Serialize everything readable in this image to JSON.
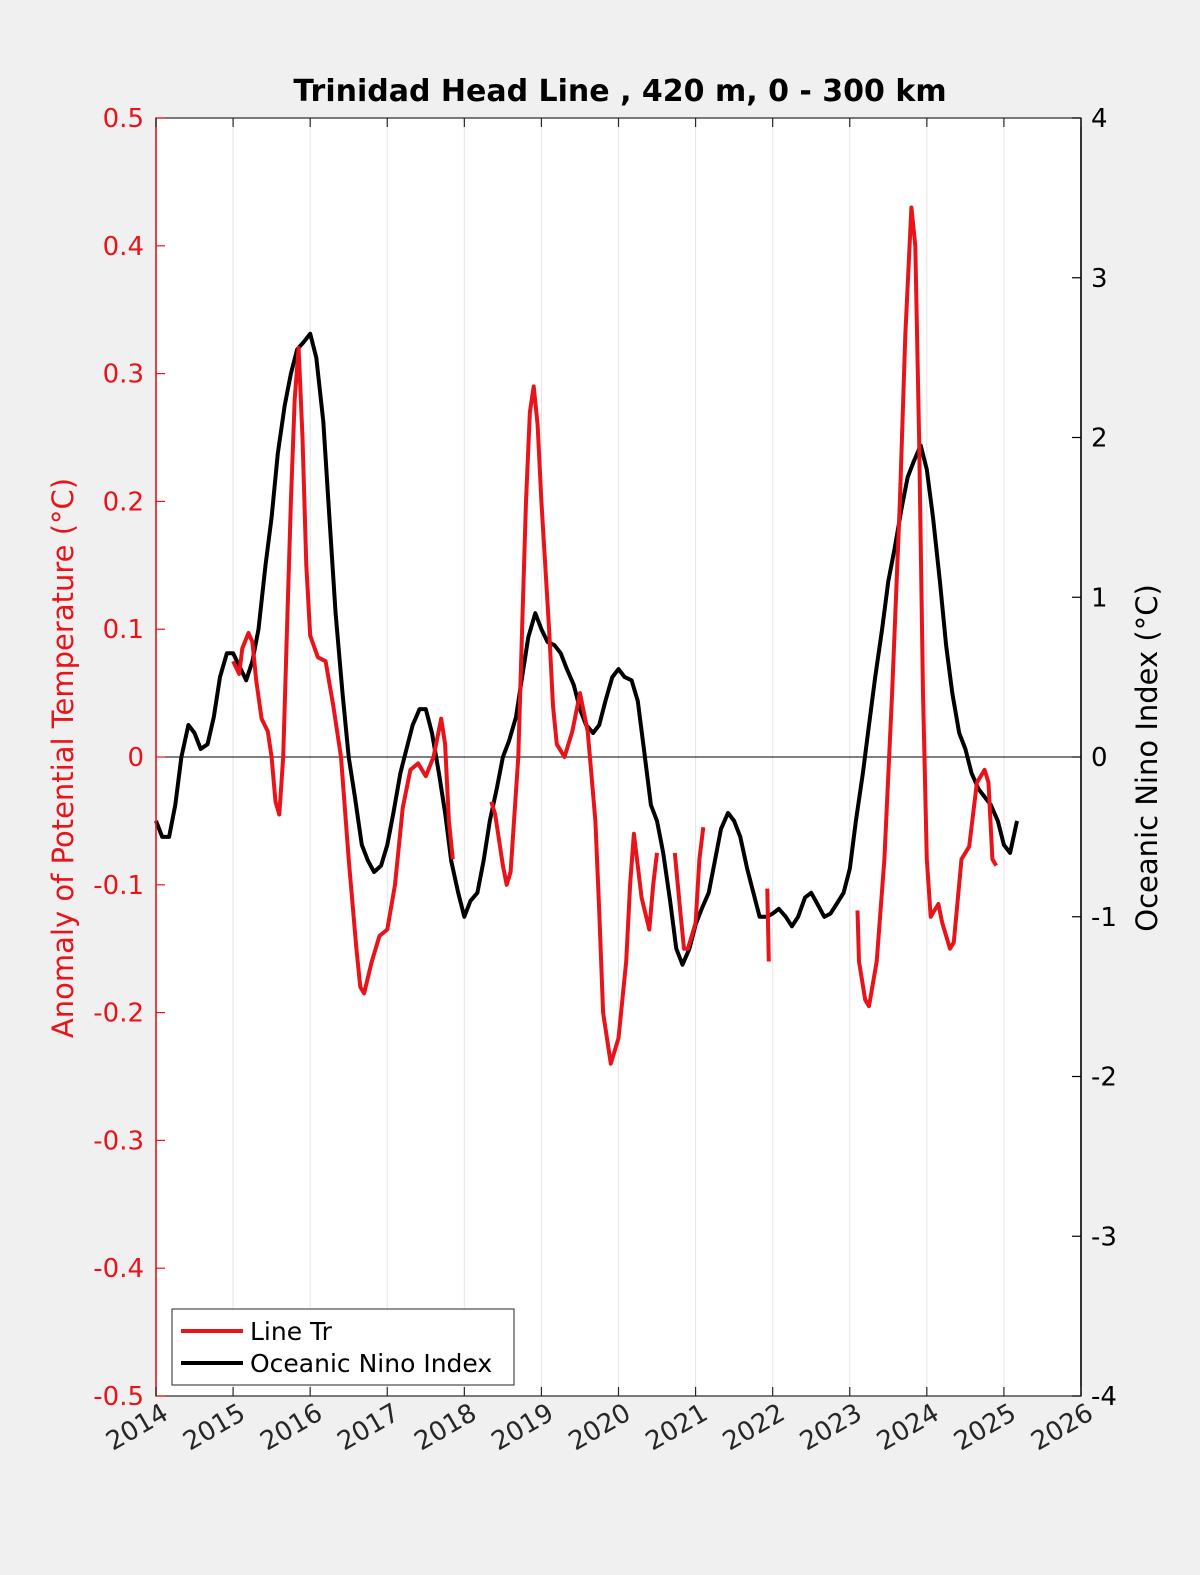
{
  "chart_data": {
    "type": "line",
    "title": "Trinidad Head Line , 420 m, 0 - 300 km",
    "xlabel": "",
    "ylabel_left": "Anomaly of Potential Temperature (°C)",
    "ylabel_right": "Oceanic Nino Index (°C)",
    "xlim": [
      2014,
      2026
    ],
    "ylim_left": [
      -0.5,
      0.5
    ],
    "ylim_right": [
      -4,
      4
    ],
    "x_ticks": [
      "2014",
      "2015",
      "2016",
      "2017",
      "2018",
      "2019",
      "2020",
      "2021",
      "2022",
      "2023",
      "2024",
      "2025",
      "2026"
    ],
    "y_ticks_left": [
      "0.5",
      "0.4",
      "0.3",
      "0.2",
      "0.1",
      "0",
      "-0.1",
      "-0.2",
      "-0.3",
      "-0.4",
      "-0.5"
    ],
    "y_ticks_right": [
      "4",
      "3",
      "2",
      "1",
      "0",
      "-1",
      "-2",
      "-3",
      "-4"
    ],
    "grid": "vertical",
    "legend_position": "bottom-left",
    "colors": {
      "line_tr": "#e8141a",
      "oni": "#000000",
      "left_axis": "#e8141a",
      "right_axis": "#000000"
    },
    "series": [
      {
        "name": "Line Tr",
        "axis": "left",
        "segments": [
          [
            [
              2015.0,
              0.075
            ],
            [
              2015.08,
              0.065
            ],
            [
              2015.12,
              0.085
            ],
            [
              2015.2,
              0.097
            ],
            [
              2015.25,
              0.09
            ],
            [
              2015.3,
              0.06
            ],
            [
              2015.37,
              0.03
            ],
            [
              2015.45,
              0.02
            ],
            [
              2015.5,
              0.0
            ],
            [
              2015.55,
              -0.035
            ],
            [
              2015.6,
              -0.045
            ],
            [
              2015.65,
              0.0
            ],
            [
              2015.7,
              0.1
            ],
            [
              2015.75,
              0.2
            ],
            [
              2015.8,
              0.28
            ],
            [
              2015.85,
              0.32
            ],
            [
              2015.9,
              0.25
            ],
            [
              2015.95,
              0.15
            ],
            [
              2016.0,
              0.095
            ],
            [
              2016.1,
              0.078
            ],
            [
              2016.2,
              0.075
            ],
            [
              2016.3,
              0.04
            ],
            [
              2016.4,
              0.0
            ],
            [
              2016.5,
              -0.08
            ],
            [
              2016.6,
              -0.15
            ],
            [
              2016.65,
              -0.18
            ],
            [
              2016.7,
              -0.185
            ],
            [
              2016.8,
              -0.16
            ],
            [
              2016.9,
              -0.14
            ],
            [
              2017.0,
              -0.135
            ],
            [
              2017.1,
              -0.1
            ],
            [
              2017.2,
              -0.04
            ],
            [
              2017.3,
              -0.01
            ],
            [
              2017.4,
              -0.005
            ],
            [
              2017.5,
              -0.015
            ],
            [
              2017.6,
              0.0
            ],
            [
              2017.7,
              0.03
            ],
            [
              2017.75,
              0.01
            ],
            [
              2017.8,
              -0.05
            ],
            [
              2017.85,
              -0.08
            ]
          ],
          [
            [
              2018.35,
              -0.035
            ],
            [
              2018.4,
              -0.045
            ],
            [
              2018.5,
              -0.085
            ],
            [
              2018.55,
              -0.1
            ],
            [
              2018.6,
              -0.09
            ],
            [
              2018.7,
              0.0
            ],
            [
              2018.75,
              0.1
            ],
            [
              2018.8,
              0.2
            ],
            [
              2018.85,
              0.27
            ],
            [
              2018.9,
              0.29
            ],
            [
              2018.95,
              0.26
            ],
            [
              2019.0,
              0.2
            ],
            [
              2019.1,
              0.1
            ],
            [
              2019.15,
              0.04
            ],
            [
              2019.2,
              0.01
            ],
            [
              2019.3,
              0.0
            ],
            [
              2019.4,
              0.02
            ],
            [
              2019.5,
              0.05
            ],
            [
              2019.6,
              0.02
            ],
            [
              2019.7,
              -0.05
            ],
            [
              2019.75,
              -0.12
            ],
            [
              2019.8,
              -0.2
            ],
            [
              2019.9,
              -0.24
            ],
            [
              2020.0,
              -0.22
            ],
            [
              2020.1,
              -0.16
            ],
            [
              2020.15,
              -0.1
            ],
            [
              2020.2,
              -0.06
            ],
            [
              2020.3,
              -0.11
            ],
            [
              2020.4,
              -0.135
            ],
            [
              2020.45,
              -0.1
            ],
            [
              2020.5,
              -0.075
            ]
          ],
          [
            [
              2020.73,
              -0.075
            ],
            [
              2020.8,
              -0.12
            ],
            [
              2020.85,
              -0.15
            ],
            [
              2020.9,
              -0.15
            ],
            [
              2021.0,
              -0.13
            ],
            [
              2021.05,
              -0.08
            ],
            [
              2021.1,
              -0.055
            ]
          ],
          [
            [
              2021.93,
              -0.103
            ],
            [
              2021.95,
              -0.16
            ]
          ],
          [
            [
              2023.1,
              -0.12
            ],
            [
              2023.12,
              -0.16
            ],
            [
              2023.2,
              -0.19
            ],
            [
              2023.25,
              -0.195
            ],
            [
              2023.35,
              -0.16
            ],
            [
              2023.45,
              -0.08
            ],
            [
              2023.55,
              0.05
            ],
            [
              2023.65,
              0.2
            ],
            [
              2023.72,
              0.33
            ],
            [
              2023.8,
              0.43
            ],
            [
              2023.85,
              0.4
            ],
            [
              2023.9,
              0.25
            ],
            [
              2023.95,
              0.05
            ],
            [
              2024.0,
              -0.08
            ],
            [
              2024.05,
              -0.125
            ],
            [
              2024.1,
              -0.12
            ],
            [
              2024.15,
              -0.115
            ],
            [
              2024.2,
              -0.13
            ],
            [
              2024.3,
              -0.15
            ],
            [
              2024.35,
              -0.145
            ],
            [
              2024.45,
              -0.08
            ],
            [
              2024.55,
              -0.07
            ],
            [
              2024.65,
              -0.02
            ],
            [
              2024.75,
              -0.01
            ],
            [
              2024.8,
              -0.02
            ],
            [
              2024.85,
              -0.08
            ],
            [
              2024.9,
              -0.085
            ]
          ]
        ]
      },
      {
        "name": "Oceanic Nino Index",
        "axis": "right",
        "segments": [
          [
            [
              2014.0,
              -0.4
            ],
            [
              2014.08,
              -0.5
            ],
            [
              2014.17,
              -0.5
            ],
            [
              2014.25,
              -0.3
            ],
            [
              2014.33,
              0.0
            ],
            [
              2014.42,
              0.2
            ],
            [
              2014.5,
              0.15
            ],
            [
              2014.58,
              0.05
            ],
            [
              2014.67,
              0.08
            ],
            [
              2014.75,
              0.25
            ],
            [
              2014.83,
              0.5
            ],
            [
              2014.92,
              0.65
            ],
            [
              2015.0,
              0.65
            ],
            [
              2015.08,
              0.57
            ],
            [
              2015.17,
              0.48
            ],
            [
              2015.25,
              0.6
            ],
            [
              2015.33,
              0.8
            ],
            [
              2015.42,
              1.2
            ],
            [
              2015.5,
              1.5
            ],
            [
              2015.58,
              1.9
            ],
            [
              2015.67,
              2.2
            ],
            [
              2015.75,
              2.4
            ],
            [
              2015.83,
              2.55
            ],
            [
              2015.92,
              2.6
            ],
            [
              2016.0,
              2.65
            ],
            [
              2016.08,
              2.5
            ],
            [
              2016.17,
              2.1
            ],
            [
              2016.25,
              1.5
            ],
            [
              2016.33,
              0.9
            ],
            [
              2016.42,
              0.4
            ],
            [
              2016.5,
              0.0
            ],
            [
              2016.58,
              -0.25
            ],
            [
              2016.67,
              -0.55
            ],
            [
              2016.75,
              -0.65
            ],
            [
              2016.83,
              -0.72
            ],
            [
              2016.92,
              -0.68
            ],
            [
              2017.0,
              -0.55
            ],
            [
              2017.08,
              -0.35
            ],
            [
              2017.17,
              -0.1
            ],
            [
              2017.25,
              0.05
            ],
            [
              2017.33,
              0.2
            ],
            [
              2017.42,
              0.3
            ],
            [
              2017.5,
              0.3
            ],
            [
              2017.58,
              0.15
            ],
            [
              2017.67,
              -0.1
            ],
            [
              2017.75,
              -0.35
            ],
            [
              2017.83,
              -0.65
            ],
            [
              2017.92,
              -0.85
            ],
            [
              2018.0,
              -1.0
            ],
            [
              2018.08,
              -0.9
            ],
            [
              2018.17,
              -0.85
            ],
            [
              2018.25,
              -0.65
            ],
            [
              2018.33,
              -0.4
            ],
            [
              2018.42,
              -0.2
            ],
            [
              2018.5,
              0.0
            ],
            [
              2018.58,
              0.1
            ],
            [
              2018.67,
              0.25
            ],
            [
              2018.75,
              0.5
            ],
            [
              2018.83,
              0.75
            ],
            [
              2018.92,
              0.9
            ],
            [
              2019.0,
              0.8
            ],
            [
              2019.08,
              0.72
            ],
            [
              2019.17,
              0.7
            ],
            [
              2019.25,
              0.65
            ],
            [
              2019.33,
              0.55
            ],
            [
              2019.42,
              0.45
            ],
            [
              2019.5,
              0.3
            ],
            [
              2019.58,
              0.2
            ],
            [
              2019.67,
              0.15
            ],
            [
              2019.75,
              0.2
            ],
            [
              2019.83,
              0.35
            ],
            [
              2019.92,
              0.5
            ],
            [
              2020.0,
              0.55
            ],
            [
              2020.08,
              0.5
            ],
            [
              2020.17,
              0.48
            ],
            [
              2020.25,
              0.35
            ],
            [
              2020.33,
              0.05
            ],
            [
              2020.42,
              -0.3
            ],
            [
              2020.5,
              -0.4
            ],
            [
              2020.58,
              -0.6
            ],
            [
              2020.67,
              -0.9
            ],
            [
              2020.75,
              -1.2
            ],
            [
              2020.83,
              -1.3
            ],
            [
              2020.92,
              -1.2
            ],
            [
              2021.0,
              -1.05
            ],
            [
              2021.08,
              -0.95
            ],
            [
              2021.17,
              -0.85
            ],
            [
              2021.25,
              -0.65
            ],
            [
              2021.33,
              -0.45
            ],
            [
              2021.42,
              -0.35
            ],
            [
              2021.5,
              -0.4
            ],
            [
              2021.58,
              -0.5
            ],
            [
              2021.67,
              -0.7
            ],
            [
              2021.75,
              -0.85
            ],
            [
              2021.83,
              -1.0
            ],
            [
              2021.92,
              -1.0
            ],
            [
              2022.0,
              -0.98
            ],
            [
              2022.08,
              -0.95
            ],
            [
              2022.17,
              -1.0
            ],
            [
              2022.25,
              -1.06
            ],
            [
              2022.33,
              -1.0
            ],
            [
              2022.42,
              -0.88
            ],
            [
              2022.5,
              -0.85
            ],
            [
              2022.58,
              -0.92
            ],
            [
              2022.67,
              -1.0
            ],
            [
              2022.75,
              -0.98
            ],
            [
              2022.83,
              -0.92
            ],
            [
              2022.92,
              -0.85
            ],
            [
              2023.0,
              -0.7
            ],
            [
              2023.08,
              -0.4
            ],
            [
              2023.17,
              -0.1
            ],
            [
              2023.25,
              0.2
            ],
            [
              2023.33,
              0.5
            ],
            [
              2023.42,
              0.8
            ],
            [
              2023.5,
              1.1
            ],
            [
              2023.58,
              1.3
            ],
            [
              2023.67,
              1.55
            ],
            [
              2023.75,
              1.75
            ],
            [
              2023.83,
              1.85
            ],
            [
              2023.92,
              1.95
            ],
            [
              2024.0,
              1.8
            ],
            [
              2024.08,
              1.5
            ],
            [
              2024.17,
              1.1
            ],
            [
              2024.25,
              0.7
            ],
            [
              2024.33,
              0.4
            ],
            [
              2024.42,
              0.15
            ],
            [
              2024.5,
              0.05
            ],
            [
              2024.58,
              -0.1
            ],
            [
              2024.67,
              -0.2
            ],
            [
              2024.75,
              -0.25
            ],
            [
              2024.83,
              -0.3
            ],
            [
              2024.92,
              -0.4
            ],
            [
              2025.0,
              -0.55
            ],
            [
              2025.08,
              -0.6
            ],
            [
              2025.17,
              -0.4
            ]
          ]
        ]
      }
    ],
    "legend": [
      "Line Tr",
      "Oceanic Nino Index"
    ]
  }
}
